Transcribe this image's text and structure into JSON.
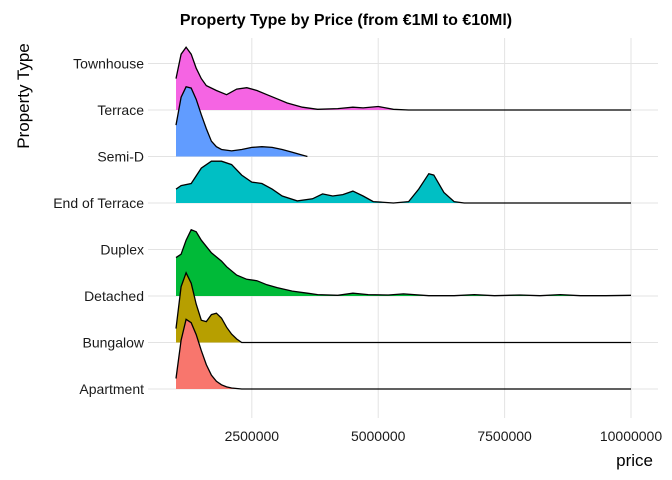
{
  "chart_data": {
    "type": "ridgeline",
    "title": "Property Type by Price (from €1Ml to €10Ml)",
    "xlabel": "price",
    "ylabel": "Property Type",
    "xlim": [
      1000000,
      10000000
    ],
    "x_ticks": [
      2500000,
      5000000,
      7500000,
      10000000
    ],
    "x_tick_labels": [
      "2500000",
      "5000000",
      "7500000",
      "10000000"
    ],
    "grid": true,
    "legend": "none",
    "categories": [
      "Apartment",
      "Bungalow",
      "Detached",
      "Duplex",
      "End of Terrace",
      "Semi-D",
      "Terrace",
      "Townhouse"
    ],
    "series": [
      {
        "category": "Apartment",
        "color": "#F8766D",
        "range": [
          1000000,
          10000000
        ],
        "density": [
          [
            1000000,
            0.15
          ],
          [
            1100000,
            0.7
          ],
          [
            1200000,
            1.0
          ],
          [
            1300000,
            0.95
          ],
          [
            1400000,
            0.78
          ],
          [
            1500000,
            0.55
          ],
          [
            1600000,
            0.35
          ],
          [
            1700000,
            0.2
          ],
          [
            1800000,
            0.11
          ],
          [
            1900000,
            0.06
          ],
          [
            2000000,
            0.03
          ],
          [
            2100000,
            0.015
          ],
          [
            2300000,
            0.0
          ]
        ]
      },
      {
        "category": "Bungalow",
        "color": "#B79F00",
        "range": [
          1000000,
          10000000
        ],
        "density": [
          [
            1000000,
            0.2
          ],
          [
            1100000,
            0.8
          ],
          [
            1200000,
            1.0
          ],
          [
            1300000,
            0.85
          ],
          [
            1400000,
            0.55
          ],
          [
            1500000,
            0.32
          ],
          [
            1600000,
            0.3
          ],
          [
            1700000,
            0.4
          ],
          [
            1800000,
            0.42
          ],
          [
            1900000,
            0.35
          ],
          [
            2000000,
            0.22
          ],
          [
            2100000,
            0.12
          ],
          [
            2200000,
            0.05
          ],
          [
            2300000,
            0.0
          ]
        ]
      },
      {
        "category": "Detached",
        "color": "#00BA38",
        "range": [
          1000000,
          10000000
        ],
        "density": [
          [
            1000000,
            0.55
          ],
          [
            1100000,
            0.6
          ],
          [
            1200000,
            0.8
          ],
          [
            1300000,
            0.95
          ],
          [
            1400000,
            0.92
          ],
          [
            1500000,
            0.8
          ],
          [
            1700000,
            0.62
          ],
          [
            1900000,
            0.5
          ],
          [
            2000000,
            0.42
          ],
          [
            2200000,
            0.3
          ],
          [
            2400000,
            0.24
          ],
          [
            2600000,
            0.22
          ],
          [
            2800000,
            0.16
          ],
          [
            3000000,
            0.12
          ],
          [
            3300000,
            0.07
          ],
          [
            3600000,
            0.04
          ],
          [
            3800000,
            0.02
          ],
          [
            4200000,
            0.01
          ],
          [
            4500000,
            0.04
          ],
          [
            4800000,
            0.02
          ],
          [
            5200000,
            0.015
          ],
          [
            5500000,
            0.03
          ],
          [
            6000000,
            0.005
          ],
          [
            6500000,
            0.005
          ],
          [
            6900000,
            0.02
          ],
          [
            7300000,
            0.005
          ],
          [
            7800000,
            0.015
          ],
          [
            8200000,
            0.005
          ],
          [
            8600000,
            0.02
          ],
          [
            9000000,
            0.005
          ],
          [
            9500000,
            0.005
          ],
          [
            10000000,
            0.01
          ]
        ]
      },
      {
        "category": "Duplex",
        "color": "#00C08B",
        "range": [
          1000000,
          10000000
        ],
        "density": [
          [
            1000000,
            0.0
          ],
          [
            10000000,
            0.0
          ]
        ]
      },
      {
        "category": "End of Terrace",
        "color": "#00BFC4",
        "range": [
          1000000,
          10000000
        ],
        "density": [
          [
            1000000,
            0.2
          ],
          [
            1100000,
            0.25
          ],
          [
            1300000,
            0.28
          ],
          [
            1500000,
            0.5
          ],
          [
            1700000,
            0.6
          ],
          [
            1900000,
            0.6
          ],
          [
            2100000,
            0.55
          ],
          [
            2300000,
            0.4
          ],
          [
            2500000,
            0.3
          ],
          [
            2700000,
            0.28
          ],
          [
            2900000,
            0.2
          ],
          [
            3100000,
            0.1
          ],
          [
            3400000,
            0.03
          ],
          [
            3700000,
            0.06
          ],
          [
            3900000,
            0.13
          ],
          [
            4100000,
            0.1
          ],
          [
            4300000,
            0.12
          ],
          [
            4500000,
            0.17
          ],
          [
            4700000,
            0.1
          ],
          [
            4900000,
            0.02
          ],
          [
            5300000,
            0.0
          ],
          [
            5600000,
            0.02
          ],
          [
            5800000,
            0.2
          ],
          [
            6000000,
            0.42
          ],
          [
            6100000,
            0.4
          ],
          [
            6300000,
            0.15
          ],
          [
            6500000,
            0.02
          ],
          [
            6700000,
            0.0
          ],
          [
            10000000,
            0.0
          ]
        ]
      },
      {
        "category": "Semi-D",
        "color": "#619CFF",
        "range": [
          1000000,
          3600000
        ],
        "density": [
          [
            1000000,
            0.45
          ],
          [
            1100000,
            0.85
          ],
          [
            1200000,
            1.0
          ],
          [
            1300000,
            0.98
          ],
          [
            1400000,
            0.82
          ],
          [
            1500000,
            0.6
          ],
          [
            1600000,
            0.4
          ],
          [
            1700000,
            0.22
          ],
          [
            1800000,
            0.14
          ],
          [
            1900000,
            0.1
          ],
          [
            2100000,
            0.08
          ],
          [
            2300000,
            0.1
          ],
          [
            2500000,
            0.13
          ],
          [
            2700000,
            0.14
          ],
          [
            2900000,
            0.13
          ],
          [
            3100000,
            0.1
          ],
          [
            3300000,
            0.06
          ],
          [
            3500000,
            0.02
          ],
          [
            3600000,
            0.0
          ]
        ]
      },
      {
        "category": "Terrace",
        "color": "#F564E3",
        "range": [
          1000000,
          10000000
        ],
        "density": [
          [
            1000000,
            0.45
          ],
          [
            1100000,
            0.8
          ],
          [
            1200000,
            0.9
          ],
          [
            1300000,
            0.8
          ],
          [
            1400000,
            0.6
          ],
          [
            1500000,
            0.45
          ],
          [
            1600000,
            0.35
          ],
          [
            1800000,
            0.28
          ],
          [
            2000000,
            0.22
          ],
          [
            2200000,
            0.3
          ],
          [
            2400000,
            0.32
          ],
          [
            2600000,
            0.28
          ],
          [
            2800000,
            0.22
          ],
          [
            3000000,
            0.16
          ],
          [
            3200000,
            0.1
          ],
          [
            3500000,
            0.04
          ],
          [
            3800000,
            0.01
          ],
          [
            4200000,
            0.02
          ],
          [
            4500000,
            0.04
          ],
          [
            4700000,
            0.03
          ],
          [
            5000000,
            0.05
          ],
          [
            5300000,
            0.01
          ],
          [
            5600000,
            0.0
          ],
          [
            10000000,
            0.0
          ]
        ]
      },
      {
        "category": "Townhouse",
        "color": "#F564E3",
        "range": [
          1000000,
          10000000
        ],
        "density": [
          [
            1000000,
            0.0
          ],
          [
            10000000,
            0.0
          ]
        ]
      }
    ]
  }
}
